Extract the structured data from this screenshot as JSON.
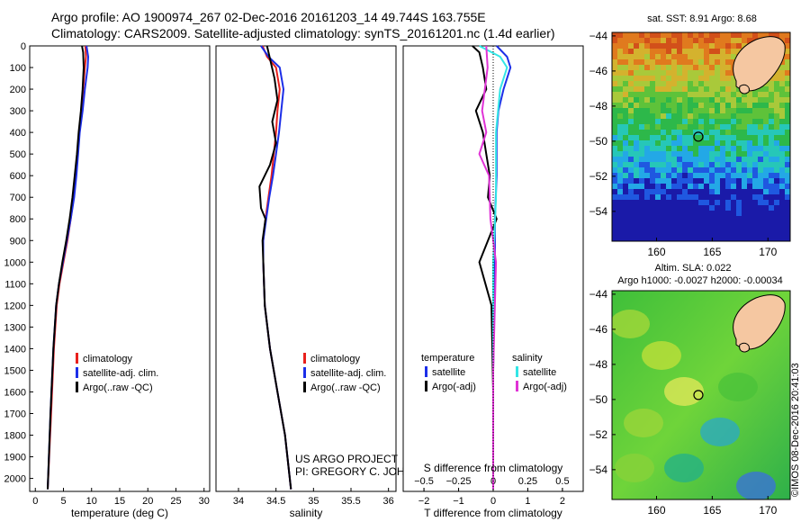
{
  "header": {
    "line1": "Argo profile: AO 1900974_267 02-Dec-2016 20161203_14 49.744S 163.755E",
    "line2": "Climatology: CARS2009. Satellite-adjusted climatology: synTS_20161201.nc (1.4d earlier)"
  },
  "credit": {
    "project": "US ARGO PROJECT",
    "pi": "PI: GREGORY C. JOHNSON",
    "imos": "©IMOS 08-Dec-2016 20:41:03"
  },
  "colors": {
    "climatology": "#e8201c",
    "satellite": "#1c2ee8",
    "argo": "#000000",
    "satellite_salinity": "#33e6e6",
    "argo_salinity": "#e033d6",
    "land": "#f5c7a1"
  },
  "chart_data": [
    {
      "type": "line",
      "xlabel": "temperature (deg C)",
      "ylabel": "",
      "xlim": [
        -1,
        31
      ],
      "ylim": [
        2060,
        0
      ],
      "xticks": [
        "0",
        "5",
        "10",
        "15",
        "20",
        "25",
        "30"
      ],
      "yticks": [
        "0",
        "100",
        "200",
        "300",
        "400",
        "500",
        "600",
        "700",
        "800",
        "900",
        "1000",
        "1100",
        "1200",
        "1300",
        "1400",
        "1500",
        "1600",
        "1700",
        "1800",
        "1900",
        "2000"
      ],
      "legend": [
        "climatology",
        "satellite-adj. clim.",
        "Argo(..raw -QC)"
      ],
      "series": [
        {
          "name": "climatology",
          "color": "#e8201c",
          "x": [
            8.9,
            9.0,
            8.8,
            8.5,
            8.2,
            7.8,
            7.5,
            7.2,
            6.8,
            6.3,
            5.7,
            5.0,
            4.3,
            3.8,
            3.3,
            2.8,
            2.2
          ],
          "y": [
            0,
            50,
            100,
            200,
            300,
            400,
            500,
            600,
            700,
            800,
            900,
            1000,
            1100,
            1200,
            1400,
            1700,
            2050
          ]
        },
        {
          "name": "satellite-adj. clim.",
          "color": "#1c2ee8",
          "x": [
            9.1,
            9.4,
            9.3,
            8.8,
            8.4,
            7.9,
            7.6,
            7.3,
            6.9,
            6.3,
            5.6,
            4.9,
            4.2,
            3.7,
            3.2,
            2.7,
            2.2
          ],
          "y": [
            0,
            50,
            100,
            200,
            300,
            400,
            500,
            600,
            700,
            800,
            900,
            1000,
            1100,
            1200,
            1400,
            1700,
            2050
          ]
        },
        {
          "name": "Argo(..raw -QC)",
          "color": "#000000",
          "x": [
            8.3,
            8.5,
            8.6,
            8.4,
            8.1,
            7.7,
            7.4,
            7.0,
            6.6,
            6.1,
            5.5,
            4.8,
            4.2,
            3.7,
            3.2,
            2.7,
            2.2
          ],
          "y": [
            0,
            30,
            100,
            200,
            300,
            400,
            500,
            600,
            700,
            800,
            900,
            1000,
            1100,
            1200,
            1400,
            1700,
            2050
          ]
        }
      ]
    },
    {
      "type": "line",
      "xlabel": "salinity",
      "ylabel": "",
      "xlim": [
        33.7,
        36.1
      ],
      "ylim": [
        2060,
        0
      ],
      "xticks": [
        "34",
        "34.5",
        "35",
        "35.5",
        "36"
      ],
      "legend": [
        "climatology",
        "satellite-adj. clim.",
        "Argo(..raw -QC)"
      ],
      "series": [
        {
          "name": "climatology",
          "color": "#e8201c",
          "x": [
            34.32,
            34.38,
            34.5,
            34.55,
            34.52,
            34.5,
            34.47,
            34.44,
            34.4,
            34.36,
            34.33,
            34.33,
            34.35,
            34.42,
            34.52,
            34.62,
            34.7
          ],
          "y": [
            0,
            50,
            100,
            200,
            300,
            400,
            500,
            600,
            700,
            800,
            900,
            1000,
            1200,
            1400,
            1600,
            1800,
            2050
          ]
        },
        {
          "name": "satellite-adj. clim.",
          "color": "#1c2ee8",
          "x": [
            34.3,
            34.4,
            34.55,
            34.6,
            34.57,
            34.54,
            34.5,
            34.46,
            34.41,
            34.37,
            34.33,
            34.33,
            34.35,
            34.42,
            34.52,
            34.62,
            34.7
          ],
          "y": [
            0,
            50,
            100,
            200,
            300,
            400,
            500,
            600,
            700,
            800,
            900,
            1000,
            1200,
            1400,
            1600,
            1800,
            2050
          ]
        },
        {
          "name": "Argo(..raw -QC)",
          "color": "#000000",
          "x": [
            34.38,
            34.42,
            34.48,
            34.52,
            34.45,
            34.5,
            34.42,
            34.28,
            34.3,
            34.36,
            34.32,
            34.35,
            34.42,
            34.52,
            34.62,
            34.7
          ],
          "y": [
            0,
            60,
            150,
            250,
            350,
            450,
            550,
            650,
            750,
            800,
            900,
            1200,
            1400,
            1600,
            1800,
            2050
          ]
        }
      ]
    },
    {
      "type": "line",
      "xlabel": "T difference from climatology",
      "xlabel_top": "S difference from climatology",
      "ylabel": "",
      "xlim": [
        -2.6,
        2.6
      ],
      "xlim_salinity": [
        -0.65,
        0.65
      ],
      "ylim": [
        2060,
        0
      ],
      "xticks": [
        "-2",
        "-1",
        "0",
        "1",
        "2"
      ],
      "xticks_salinity": [
        "-0.5",
        "-0.25",
        "0",
        "0.25",
        "0.5"
      ],
      "legend_temperature": [
        "temperature",
        "satellite",
        "Argo(-adj)"
      ],
      "legend_salinity": [
        "salinity",
        "satellite",
        "Argo(-adj)"
      ],
      "series": [
        {
          "name": "satellite",
          "color": "#1c2ee8",
          "x": [
            0.1,
            0.4,
            0.5,
            0.3,
            0.15,
            0.1,
            0.1,
            0.05,
            0.05,
            0.0,
            0.0
          ],
          "y": [
            0,
            50,
            100,
            200,
            300,
            400,
            600,
            800,
            1000,
            1500,
            2050
          ]
        },
        {
          "name": "Argo(-adj)",
          "color": "#000000",
          "x": [
            -0.6,
            -0.4,
            -0.3,
            -0.2,
            -0.5,
            -0.3,
            -0.2,
            -0.1,
            -0.15,
            0.1,
            -0.4,
            -0.05,
            0.0,
            0.0
          ],
          "y": [
            0,
            30,
            100,
            200,
            300,
            400,
            500,
            600,
            700,
            800,
            1000,
            1200,
            1600,
            2050
          ]
        },
        {
          "name": "satellite",
          "color": "#33e6e6",
          "x": [
            -0.1,
            0.05,
            0.1,
            0.05,
            0.02,
            0.02,
            0.0,
            0.0,
            0.0
          ],
          "y": [
            0,
            50,
            100,
            200,
            400,
            700,
            1000,
            1500,
            2050
          ]
        },
        {
          "name": "Argo(-adj)",
          "color": "#e033d6",
          "x": [
            -0.05,
            -0.04,
            -0.08,
            -0.05,
            -0.1,
            -0.03,
            -0.02,
            0.02,
            0.0,
            0.0
          ],
          "y": [
            0,
            100,
            300,
            400,
            500,
            600,
            800,
            1000,
            1500,
            2050
          ]
        }
      ]
    },
    {
      "type": "heatmap",
      "title": "sat. SST: 8.91 Argo: 8.68",
      "xticks": [
        "160",
        "165",
        "170"
      ],
      "yticks": [
        "-44",
        "-46",
        "-48",
        "-50",
        "-52",
        "-54"
      ],
      "xlim": [
        156,
        172
      ],
      "ylim": [
        -55.7,
        -43.8
      ],
      "float_position": {
        "lon": 163.755,
        "lat": -49.744
      }
    },
    {
      "type": "heatmap",
      "title": "Altim. SLA: 0.022",
      "subtitle": "Argo h1000: -0.0027 h2000: -0.00034",
      "xticks": [
        "160",
        "165",
        "170"
      ],
      "yticks": [
        "-44",
        "-46",
        "-48",
        "-50",
        "-52",
        "-54"
      ],
      "xlim": [
        156,
        172
      ],
      "ylim": [
        -55.7,
        -43.8
      ],
      "float_position": {
        "lon": 163.755,
        "lat": -49.744
      }
    }
  ]
}
